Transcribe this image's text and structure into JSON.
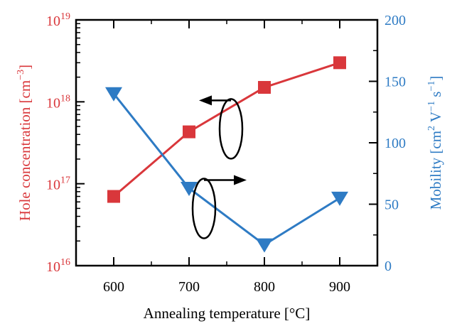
{
  "chart_data": {
    "type": "line",
    "xlabel": "Annealing temperature [°C]",
    "xlim": [
      550,
      950
    ],
    "x_ticks": [
      600,
      700,
      800,
      900
    ],
    "left_axis": {
      "label_main": "Hole concentration [cm",
      "label_sup": "−3",
      "label_end": "]",
      "scale": "log",
      "lim": [
        1e+16,
        1e+19
      ],
      "color": "#d9373b",
      "ticks": [
        {
          "value": 1e+16,
          "base": "10",
          "exp": "16"
        },
        {
          "value": 1e+17,
          "base": "10",
          "exp": "17"
        },
        {
          "value": 1e+18,
          "base": "10",
          "exp": "18"
        },
        {
          "value": 1e+19,
          "base": "10",
          "exp": "19"
        }
      ]
    },
    "right_axis": {
      "label_main": "Mobility [cm",
      "label_sup1": "2",
      "label_mid": " V",
      "label_sup2": "−1",
      "label_mid2": " s",
      "label_sup3": "−1",
      "label_end": "]",
      "scale": "linear",
      "lim": [
        0,
        200
      ],
      "color": "#2e7bc4",
      "ticks": [
        0,
        50,
        100,
        150,
        200
      ]
    },
    "series": [
      {
        "axis": "left",
        "color": "#d9373b",
        "marker": "square",
        "x": [
          600,
          700,
          800,
          900
        ],
        "values": [
          7e+16,
          4.3e+17,
          1.5e+18,
          3e+18
        ]
      },
      {
        "axis": "right",
        "color": "#2e7bc4",
        "marker": "triangle-down",
        "x": [
          600,
          700,
          800,
          900
        ],
        "values": [
          140,
          63,
          17,
          55
        ]
      }
    ],
    "annotations": [
      {
        "type": "ellipse-arrow",
        "series": 0,
        "direction": "left",
        "x": 750,
        "y_left": 1e+18
      },
      {
        "type": "ellipse-arrow",
        "series": 1,
        "direction": "right",
        "x": 750,
        "y_right": 50
      }
    ],
    "grid": false
  }
}
